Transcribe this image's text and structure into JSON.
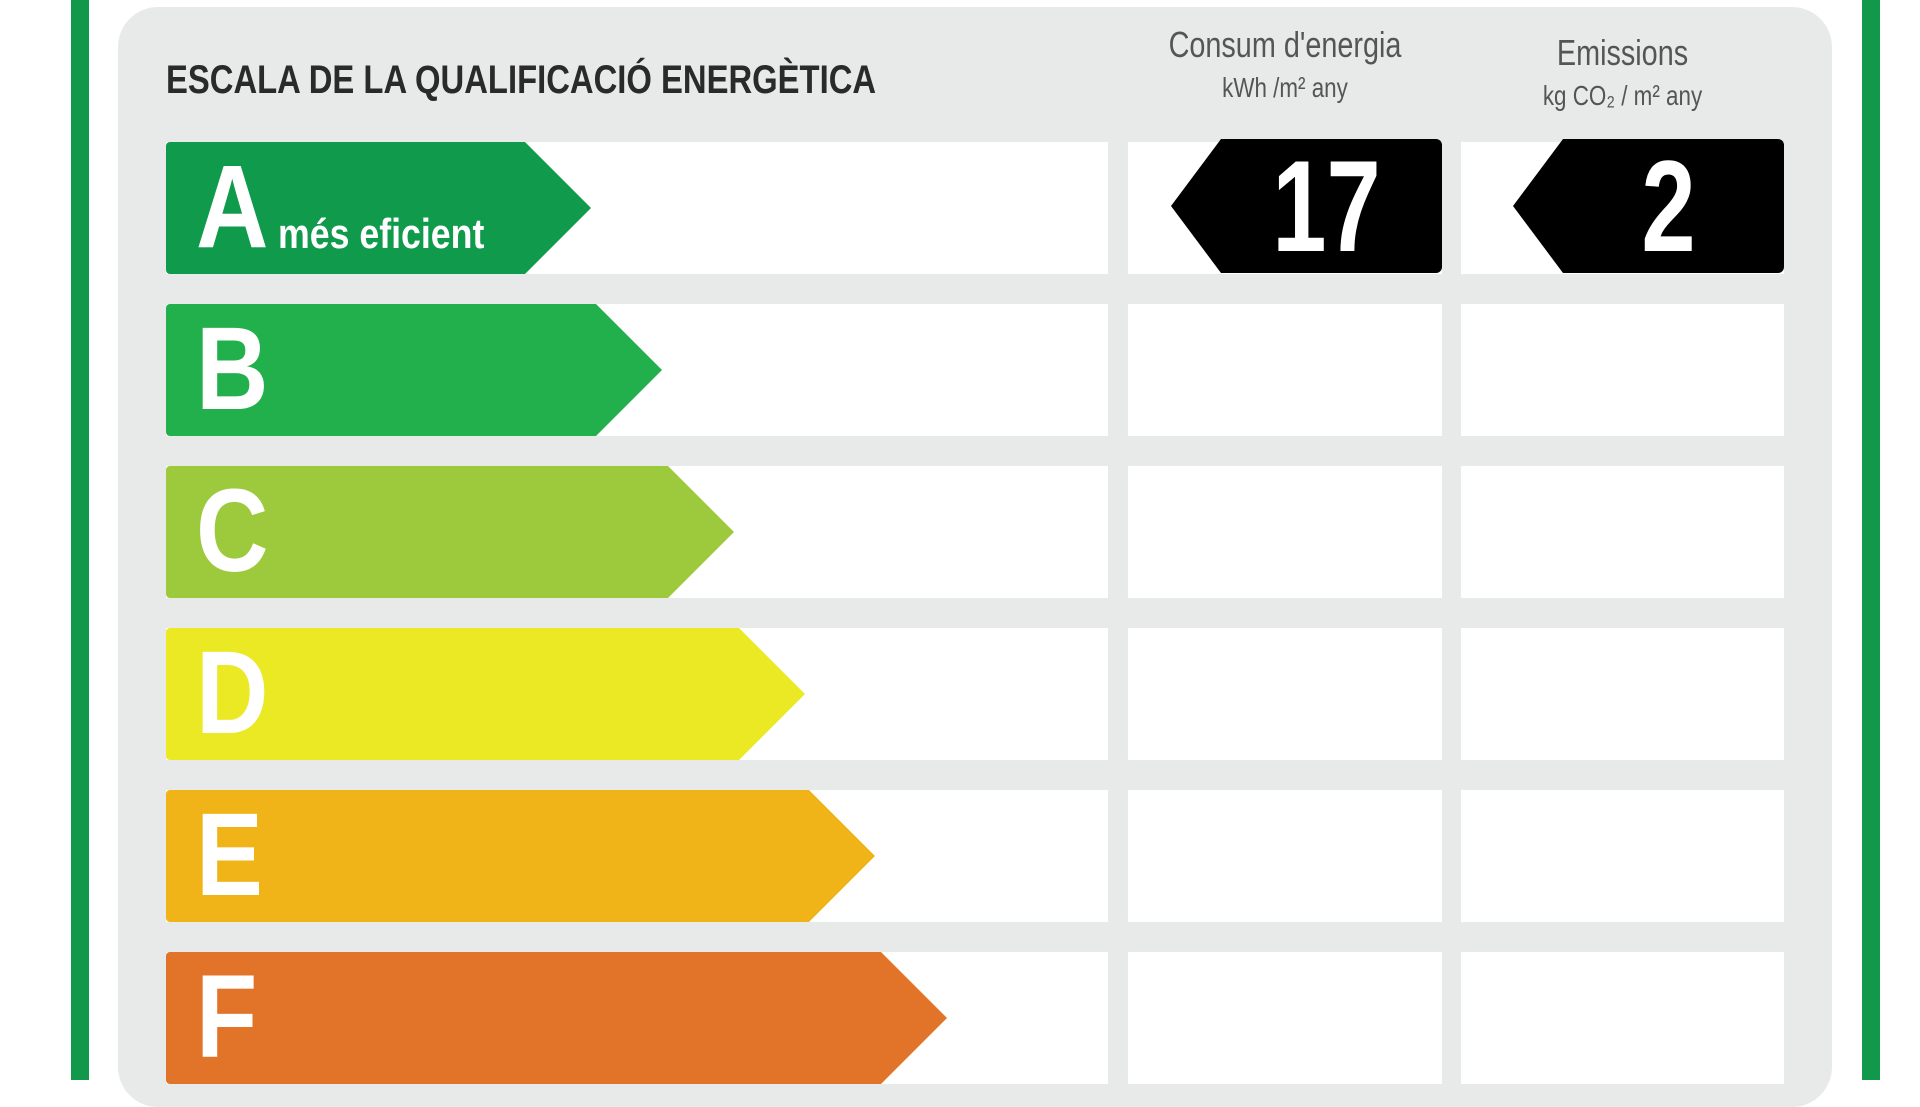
{
  "title": "ESCALA DE LA QUALIFICACIÓ ENERGÈTICA",
  "columns": {
    "energy": {
      "label": "Consum d'energia",
      "unit": "kWh /m² any"
    },
    "emissions": {
      "label": "Emissions",
      "unit": "kg CO₂ / m² any"
    }
  },
  "ratings": [
    {
      "letter": "A",
      "sub": "més eficient",
      "color": "#0f9a4c"
    },
    {
      "letter": "B",
      "color": "#21b04b"
    },
    {
      "letter": "C",
      "color": "#9dca3c"
    },
    {
      "letter": "D",
      "color": "#ebe924"
    },
    {
      "letter": "E",
      "color": "#f0b418"
    },
    {
      "letter": "F",
      "color": "#e2742a"
    }
  ],
  "result": {
    "rating": "A",
    "energy_value": "17",
    "emissions_value": "2"
  },
  "colors": {
    "border": "#12984a",
    "panel": "#e8e9e9",
    "badge": "#000000"
  }
}
